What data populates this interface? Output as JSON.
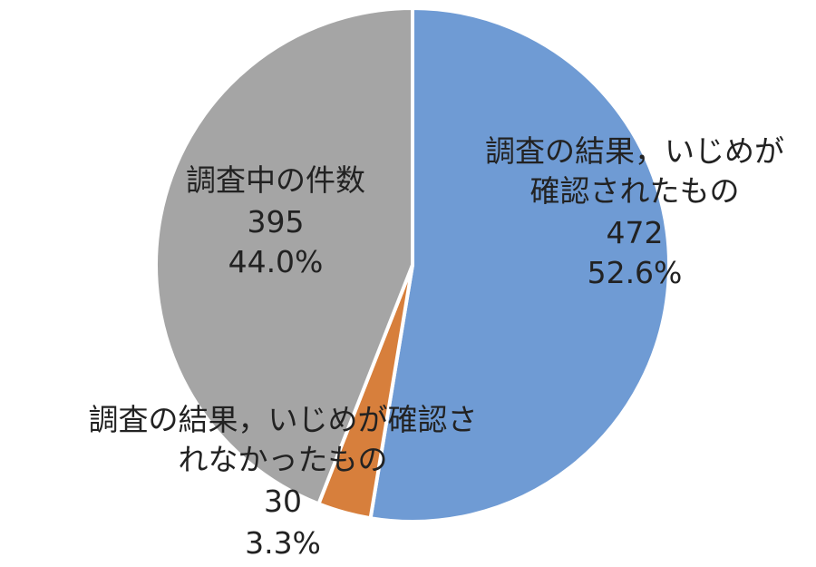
{
  "chart_data": {
    "type": "pie",
    "start_angle": "top",
    "direction": "clockwise",
    "slices": [
      {
        "label_lines": [
          "調査の結果，いじめが",
          "確認されたもの"
        ],
        "value": 472,
        "value_label": "472",
        "percent_label": "52.6%",
        "color": "#6f9bd4"
      },
      {
        "label_lines": [
          "調査の結果，いじめが確認さ",
          "れなかったもの"
        ],
        "value": 30,
        "value_label": "30",
        "percent_label": "3.3%",
        "color": "#d77f3c"
      },
      {
        "label_lines": [
          "調査中の件数"
        ],
        "value": 395,
        "value_label": "395",
        "percent_label": "44.0%",
        "color": "#a5a5a5"
      }
    ]
  }
}
